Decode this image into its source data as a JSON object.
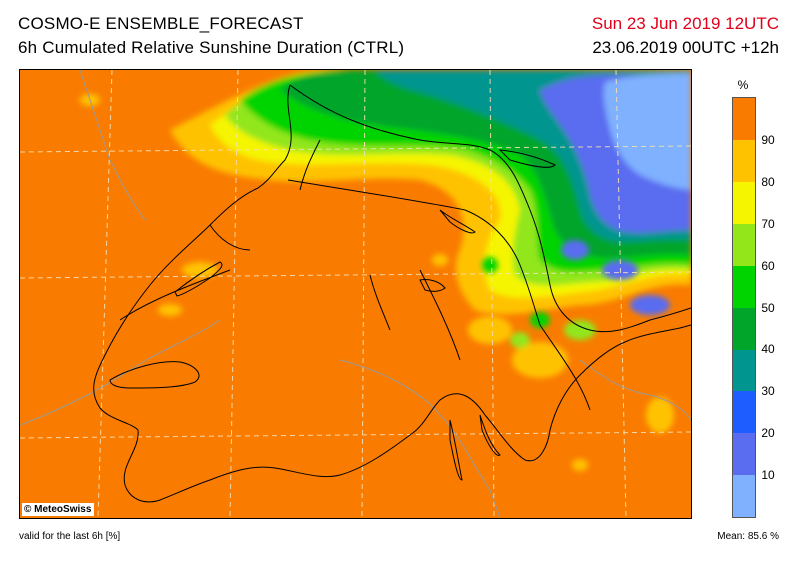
{
  "header": {
    "title": "COSMO-E ENSEMBLE_FORECAST",
    "subtitle": "6h Cumulated Relative Sunshine Duration (CTRL)",
    "valid_date": "Sun 23 Jun 2019 12UTC",
    "run_info": "23.06.2019 00UTC +12h"
  },
  "map": {
    "copyright": "© MeteoSwiss"
  },
  "legend": {
    "unit": "%",
    "bins": [
      {
        "from": 0,
        "to": 10,
        "color": "#7fb1ff"
      },
      {
        "from": 10,
        "to": 20,
        "color": "#5a6cf0"
      },
      {
        "from": 20,
        "to": 30,
        "color": "#1e5dff"
      },
      {
        "from": 30,
        "to": 40,
        "color": "#00958f"
      },
      {
        "from": 40,
        "to": 50,
        "color": "#00a52a"
      },
      {
        "from": 50,
        "to": 60,
        "color": "#00d400"
      },
      {
        "from": 60,
        "to": 70,
        "color": "#92e61a"
      },
      {
        "from": 70,
        "to": 80,
        "color": "#f5f500"
      },
      {
        "from": 80,
        "to": 90,
        "color": "#ffc200"
      },
      {
        "from": 90,
        "to": 100,
        "color": "#f97c00"
      }
    ],
    "labels": [
      "10",
      "20",
      "30",
      "40",
      "50",
      "60",
      "70",
      "80",
      "90"
    ]
  },
  "footer": {
    "validity": "valid for the last 6h [%]",
    "mean": "Mean:  85.6 %"
  }
}
